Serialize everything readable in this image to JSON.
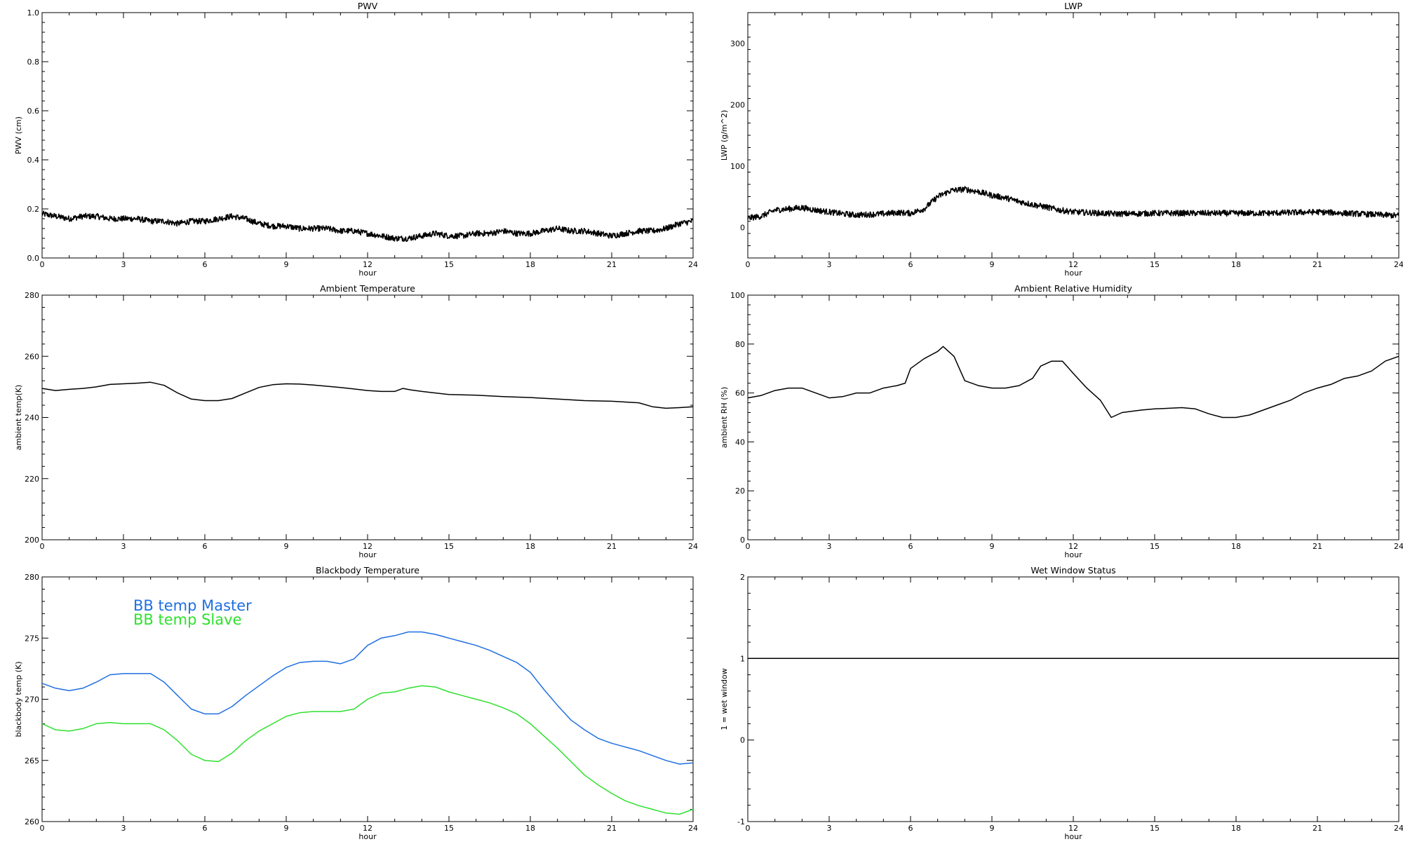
{
  "chart_data": [
    {
      "id": "pwv",
      "type": "line",
      "title": "PWV",
      "xlabel": "hour",
      "ylabel": "PWV (cm)",
      "xlim": [
        0,
        24
      ],
      "ylim": [
        0.0,
        1.0
      ],
      "xticks": [
        0,
        3,
        6,
        9,
        12,
        15,
        18,
        21,
        24
      ],
      "yticks": [
        0.0,
        0.2,
        0.4,
        0.6,
        0.8,
        1.0
      ],
      "xtick_labels": [
        "0",
        "3",
        "6",
        "9",
        "12",
        "15",
        "18",
        "21",
        "24"
      ],
      "ytick_labels": [
        "0.0",
        "0.2",
        "0.4",
        "0.6",
        "0.8",
        "1.0"
      ],
      "series": [
        {
          "color": "#000000",
          "noisy": true,
          "x": [
            0,
            0.5,
            1,
            1.5,
            2,
            2.5,
            3,
            3.5,
            4,
            4.5,
            5,
            5.5,
            6,
            6.5,
            7,
            7.5,
            8,
            8.5,
            9,
            9.5,
            10,
            10.5,
            11,
            11.5,
            12,
            12.5,
            13,
            13.5,
            14,
            14.5,
            15,
            15.5,
            16,
            16.5,
            17,
            17.5,
            18,
            18.5,
            19,
            19.5,
            20,
            20.5,
            21,
            21.5,
            22,
            22.5,
            23,
            23.5,
            24
          ],
          "y": [
            0.18,
            0.17,
            0.16,
            0.17,
            0.17,
            0.16,
            0.16,
            0.16,
            0.15,
            0.15,
            0.14,
            0.15,
            0.15,
            0.16,
            0.17,
            0.16,
            0.14,
            0.13,
            0.13,
            0.12,
            0.12,
            0.12,
            0.11,
            0.11,
            0.1,
            0.09,
            0.08,
            0.08,
            0.09,
            0.1,
            0.09,
            0.09,
            0.1,
            0.1,
            0.11,
            0.1,
            0.1,
            0.11,
            0.12,
            0.11,
            0.11,
            0.1,
            0.09,
            0.1,
            0.11,
            0.11,
            0.12,
            0.14,
            0.15
          ]
        }
      ]
    },
    {
      "id": "lwp",
      "type": "line",
      "title": "LWP",
      "xlabel": "hour",
      "ylabel": "LWP (g/m^2)",
      "xlim": [
        0,
        24
      ],
      "ylim": [
        -50,
        350
      ],
      "xticks": [
        0,
        3,
        6,
        9,
        12,
        15,
        18,
        21,
        24
      ],
      "yticks": [
        0,
        100,
        200,
        300
      ],
      "xtick_labels": [
        "0",
        "3",
        "6",
        "9",
        "12",
        "15",
        "18",
        "21",
        "24"
      ],
      "ytick_labels": [
        "0",
        "100",
        "200",
        "300"
      ],
      "series": [
        {
          "color": "#000000",
          "noisy": true,
          "x": [
            0,
            0.5,
            1,
            1.5,
            2,
            2.5,
            3,
            3.5,
            4,
            4.5,
            5,
            5.5,
            6,
            6.5,
            7,
            7.5,
            8,
            8.5,
            9,
            9.5,
            10,
            10.5,
            11,
            11.5,
            12,
            12.5,
            13,
            13.5,
            14,
            15,
            16,
            17,
            18,
            19,
            20,
            21,
            22,
            23,
            24
          ],
          "y": [
            15,
            18,
            28,
            30,
            32,
            28,
            25,
            22,
            20,
            21,
            22,
            24,
            23,
            30,
            50,
            60,
            62,
            58,
            52,
            48,
            42,
            37,
            33,
            28,
            25,
            24,
            23,
            22,
            22,
            23,
            23,
            23,
            23,
            23,
            24,
            25,
            23,
            21,
            19
          ]
        }
      ]
    },
    {
      "id": "ambient-temp",
      "type": "line",
      "title": "Ambient Temperature",
      "xlabel": "hour",
      "ylabel": "ambient temp(K)",
      "xlim": [
        0,
        24
      ],
      "ylim": [
        200,
        280
      ],
      "xticks": [
        0,
        3,
        6,
        9,
        12,
        15,
        18,
        21,
        24
      ],
      "yticks": [
        200,
        220,
        240,
        260,
        280
      ],
      "xtick_labels": [
        "0",
        "3",
        "6",
        "9",
        "12",
        "15",
        "18",
        "21",
        "24"
      ],
      "ytick_labels": [
        "200",
        "220",
        "240",
        "260",
        "280"
      ],
      "series": [
        {
          "color": "#000000",
          "noisy": false,
          "x": [
            0,
            0.5,
            1,
            1.5,
            2,
            2.5,
            3,
            3.5,
            4,
            4.5,
            5,
            5.5,
            6,
            6.5,
            7,
            7.5,
            8,
            8.5,
            9,
            9.5,
            10,
            10.5,
            11,
            11.5,
            12,
            12.5,
            13,
            13.3,
            13.6,
            14,
            15,
            16,
            17,
            18,
            19,
            20,
            21,
            22,
            22.5,
            23,
            23.5,
            24
          ],
          "y": [
            249.5,
            248.8,
            249.2,
            249.5,
            250.0,
            250.8,
            251.0,
            251.2,
            251.5,
            250.5,
            248.0,
            246.0,
            245.5,
            245.5,
            246.2,
            248.0,
            249.8,
            250.7,
            251.0,
            250.9,
            250.6,
            250.2,
            249.8,
            249.3,
            248.8,
            248.5,
            248.5,
            249.5,
            249.0,
            248.5,
            247.5,
            247.3,
            246.8,
            246.5,
            246.0,
            245.5,
            245.3,
            244.8,
            243.5,
            243.0,
            243.2,
            243.5
          ]
        }
      ]
    },
    {
      "id": "ambient-rh",
      "type": "line",
      "title": "Ambient Relative Humidity",
      "xlabel": "hour",
      "ylabel": "ambient RH (%)",
      "xlim": [
        0,
        24
      ],
      "ylim": [
        0,
        100
      ],
      "xticks": [
        0,
        3,
        6,
        9,
        12,
        15,
        18,
        21,
        24
      ],
      "yticks": [
        0,
        20,
        40,
        60,
        80,
        100
      ],
      "xtick_labels": [
        "0",
        "3",
        "6",
        "9",
        "12",
        "15",
        "18",
        "21",
        "24"
      ],
      "ytick_labels": [
        "0",
        "20",
        "40",
        "60",
        "80",
        "100"
      ],
      "series": [
        {
          "color": "#000000",
          "noisy": false,
          "x": [
            0,
            0.5,
            1,
            1.5,
            2,
            2.5,
            3,
            3.5,
            4,
            4.5,
            5,
            5.5,
            5.8,
            6,
            6.5,
            7,
            7.2,
            7.6,
            8,
            8.5,
            9,
            9.5,
            10,
            10.5,
            10.8,
            11.2,
            11.6,
            12,
            12.5,
            13,
            13.4,
            13.8,
            14.5,
            15,
            16,
            16.5,
            17,
            17.5,
            18,
            18.5,
            19,
            19.5,
            20,
            20.5,
            21,
            21.5,
            22,
            22.5,
            23,
            23.5,
            24
          ],
          "y": [
            58,
            59,
            61,
            62,
            62,
            60,
            58,
            58.5,
            60,
            60,
            62,
            63,
            64,
            70,
            74,
            77,
            79,
            75,
            65,
            63,
            62,
            62,
            63,
            66,
            71,
            73,
            73,
            68,
            62,
            57,
            50,
            52,
            53,
            53.5,
            54,
            53.5,
            51.5,
            50,
            50,
            51,
            53,
            55,
            57,
            60,
            62,
            63.5,
            66,
            67,
            69,
            73,
            75
          ]
        }
      ]
    },
    {
      "id": "bb-temp",
      "type": "line",
      "title": "Blackbody Temperature",
      "xlabel": "hour",
      "ylabel": "blackbody temp (K)",
      "xlim": [
        0,
        24
      ],
      "ylim": [
        260,
        280
      ],
      "xticks": [
        0,
        3,
        6,
        9,
        12,
        15,
        18,
        21,
        24
      ],
      "yticks": [
        260,
        265,
        270,
        275,
        280
      ],
      "xtick_labels": [
        "0",
        "3",
        "6",
        "9",
        "12",
        "15",
        "18",
        "21",
        "24"
      ],
      "ytick_labels": [
        "260",
        "265",
        "270",
        "275",
        "280"
      ],
      "legend": [
        "BB temp Master",
        "BB temp Slave"
      ],
      "series": [
        {
          "name": "BB temp Master",
          "color": "#1f6fe0",
          "noisy": false,
          "x": [
            0,
            0.5,
            1,
            1.5,
            2,
            2.5,
            3,
            3.5,
            4,
            4.5,
            5,
            5.5,
            6,
            6.5,
            7,
            7.5,
            8,
            8.5,
            9,
            9.5,
            10,
            10.5,
            11,
            11.5,
            12,
            12.5,
            13,
            13.5,
            14,
            14.5,
            15,
            15.5,
            16,
            16.5,
            17,
            17.5,
            18,
            18.5,
            19,
            19.5,
            20,
            20.5,
            21,
            21.5,
            22,
            22.5,
            23,
            23.5,
            24
          ],
          "y": [
            271.3,
            270.9,
            270.7,
            270.9,
            271.4,
            272.0,
            272.1,
            272.1,
            272.1,
            271.4,
            270.3,
            269.2,
            268.8,
            268.8,
            269.4,
            270.3,
            271.1,
            271.9,
            272.6,
            273.0,
            273.1,
            273.1,
            272.9,
            273.3,
            274.4,
            275.0,
            275.2,
            275.5,
            275.5,
            275.3,
            275.0,
            274.7,
            274.4,
            274.0,
            273.5,
            273.0,
            272.2,
            270.8,
            269.5,
            268.3,
            267.5,
            266.8,
            266.4,
            266.1,
            265.8,
            265.4,
            265.0,
            264.7,
            264.8
          ]
        },
        {
          "name": "BB temp Slave",
          "color": "#2fe02f",
          "noisy": false,
          "x": [
            0,
            0.5,
            1,
            1.5,
            2,
            2.5,
            3,
            3.5,
            4,
            4.5,
            5,
            5.5,
            6,
            6.5,
            7,
            7.5,
            8,
            8.5,
            9,
            9.5,
            10,
            10.5,
            11,
            11.5,
            12,
            12.5,
            13,
            13.5,
            14,
            14.5,
            15,
            15.5,
            16,
            16.5,
            17,
            17.5,
            18,
            18.5,
            19,
            19.5,
            20,
            20.5,
            21,
            21.5,
            22,
            22.5,
            23,
            23.5,
            24
          ],
          "y": [
            268.0,
            267.5,
            267.4,
            267.6,
            268.0,
            268.1,
            268.0,
            268.0,
            268.0,
            267.5,
            266.6,
            265.5,
            265.0,
            264.9,
            265.6,
            266.6,
            267.4,
            268.0,
            268.6,
            268.9,
            269.0,
            269.0,
            269.0,
            269.2,
            270.0,
            270.5,
            270.6,
            270.9,
            271.1,
            271.0,
            270.6,
            270.3,
            270.0,
            269.7,
            269.3,
            268.8,
            268.0,
            267.0,
            266.0,
            264.9,
            263.8,
            263.0,
            262.3,
            261.7,
            261.3,
            261.0,
            260.7,
            260.6,
            261.0
          ]
        }
      ]
    },
    {
      "id": "wet-window",
      "type": "line",
      "title": "Wet Window Status",
      "xlabel": "hour",
      "ylabel": "1 = wet window",
      "xlim": [
        0,
        24
      ],
      "ylim": [
        -1,
        2
      ],
      "xticks": [
        0,
        3,
        6,
        9,
        12,
        15,
        18,
        21,
        24
      ],
      "yticks": [
        -1,
        0,
        1,
        2
      ],
      "xtick_labels": [
        "0",
        "3",
        "6",
        "9",
        "12",
        "15",
        "18",
        "21",
        "24"
      ],
      "ytick_labels": [
        "-1",
        "0",
        "1",
        "2"
      ],
      "series": [
        {
          "color": "#000000",
          "noisy": false,
          "x": [
            0,
            24
          ],
          "y": [
            1,
            1
          ]
        }
      ]
    }
  ]
}
